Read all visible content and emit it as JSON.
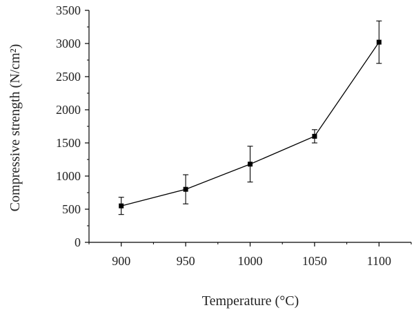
{
  "chart_data": {
    "type": "line",
    "xlabel": "Temperature (°C)",
    "ylabel": "Compressive strength (N/cm²)",
    "xlim": [
      875,
      1125
    ],
    "ylim": [
      0,
      3500
    ],
    "x_ticks": [
      900,
      950,
      1000,
      1050,
      1100
    ],
    "y_ticks": [
      0,
      500,
      1000,
      1500,
      2000,
      2500,
      3000,
      3500
    ],
    "grid": false,
    "legend": "none",
    "series": [
      {
        "x": [
          900,
          950,
          1000,
          1050,
          1100
        ],
        "y": [
          550,
          800,
          1180,
          1600,
          3020
        ],
        "error": [
          130,
          220,
          270,
          100,
          320
        ],
        "marker": "square",
        "color": "#000000"
      }
    ]
  }
}
